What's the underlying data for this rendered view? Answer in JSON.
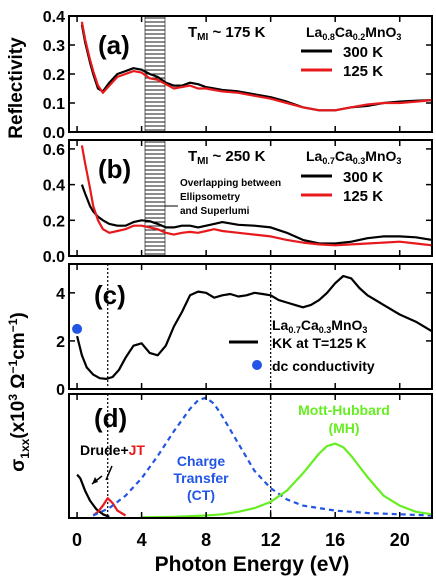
{
  "figure": {
    "xlabel": "Photon Energy (eV)",
    "x_ticks": [
      "0",
      "4",
      "8",
      "12",
      "16",
      "20"
    ],
    "x_range": [
      -0.5,
      22
    ],
    "shared_ylabel_reflectivity": "Reflectivity",
    "shared_ylabel_sigma": "σ1xx(x10³ Ω⁻¹cm⁻¹)"
  },
  "colors": {
    "black": "#000000",
    "red": "#e8191c",
    "blue": "#2255e6",
    "green": "#66ee22"
  },
  "chart_data": [
    {
      "type": "line",
      "panel_label": "(a)",
      "annotation": "T_MI ~ 175 K",
      "material": "La0.8Ca0.2MnO3",
      "ylabel": "Reflectivity",
      "ylim": [
        0,
        0.4
      ],
      "yticks": [
        "0.0",
        "0.1",
        "0.2",
        "0.3",
        "0.4"
      ],
      "hatched_region_x": [
        4.3,
        5.4
      ],
      "series": [
        {
          "name": "300 K",
          "color": "#000000",
          "x": [
            0.3,
            0.5,
            0.8,
            1.0,
            1.3,
            1.6,
            2.0,
            2.5,
            3.0,
            3.5,
            4.0,
            4.5,
            5.0,
            5.5,
            6.0,
            6.5,
            7.0,
            7.5,
            8.0,
            8.5,
            9.0,
            10.0,
            11.0,
            12.0,
            13.0,
            14.0,
            15.0,
            16.0,
            17.0,
            18.0,
            19.0,
            20.0,
            21.0,
            22.0
          ],
          "y": [
            0.37,
            0.31,
            0.24,
            0.2,
            0.15,
            0.14,
            0.17,
            0.2,
            0.21,
            0.22,
            0.215,
            0.2,
            0.19,
            0.17,
            0.16,
            0.16,
            0.17,
            0.165,
            0.155,
            0.15,
            0.145,
            0.14,
            0.13,
            0.12,
            0.105,
            0.085,
            0.075,
            0.075,
            0.085,
            0.09,
            0.1,
            0.105,
            0.108,
            0.11
          ]
        },
        {
          "name": "125 K",
          "color": "#e8191c",
          "x": [
            0.3,
            0.5,
            0.8,
            1.0,
            1.3,
            1.6,
            2.0,
            2.5,
            3.0,
            3.5,
            4.0,
            4.5,
            5.0,
            5.5,
            6.0,
            6.5,
            7.0,
            7.5,
            8.0,
            8.5,
            9.0,
            10.0,
            11.0,
            12.0,
            13.0,
            14.0,
            15.0,
            16.0,
            17.0,
            18.0,
            19.0,
            20.0,
            21.0,
            22.0
          ],
          "y": [
            0.38,
            0.32,
            0.25,
            0.21,
            0.16,
            0.135,
            0.16,
            0.19,
            0.2,
            0.21,
            0.205,
            0.185,
            0.18,
            0.165,
            0.15,
            0.155,
            0.16,
            0.15,
            0.15,
            0.145,
            0.14,
            0.135,
            0.125,
            0.115,
            0.1,
            0.085,
            0.075,
            0.075,
            0.085,
            0.095,
            0.1,
            0.1,
            0.105,
            0.11
          ]
        }
      ]
    },
    {
      "type": "line",
      "panel_label": "(b)",
      "annotation": "T_MI ~ 250 K",
      "material": "La0.7Ca0.3MnO3",
      "ylabel": "Reflectivity",
      "ylim": [
        0,
        0.65
      ],
      "yticks": [
        "0.0",
        "0.2",
        "0.4",
        "0.6"
      ],
      "hatched_region_x": [
        4.3,
        5.4
      ],
      "overlap_note": [
        "Overlapping between",
        "Ellipsometry",
        "and Superlumi"
      ],
      "series": [
        {
          "name": "300 K",
          "color": "#000000",
          "x": [
            0.3,
            0.5,
            0.8,
            1.0,
            1.3,
            1.6,
            2.0,
            2.5,
            3.0,
            3.5,
            4.0,
            4.5,
            5.0,
            5.5,
            6.0,
            6.5,
            7.0,
            7.5,
            8.0,
            8.5,
            9.0,
            10.0,
            11.0,
            12.0,
            13.0,
            14.0,
            15.0,
            16.0,
            17.0,
            18.0,
            19.0,
            20.0,
            21.0,
            22.0
          ],
          "y": [
            0.4,
            0.35,
            0.28,
            0.25,
            0.22,
            0.2,
            0.18,
            0.17,
            0.17,
            0.19,
            0.2,
            0.195,
            0.18,
            0.16,
            0.16,
            0.17,
            0.17,
            0.16,
            0.17,
            0.18,
            0.19,
            0.175,
            0.17,
            0.16,
            0.13,
            0.09,
            0.07,
            0.07,
            0.08,
            0.1,
            0.11,
            0.11,
            0.105,
            0.09
          ]
        },
        {
          "name": "125 K",
          "color": "#e8191c",
          "x": [
            0.3,
            0.5,
            0.8,
            1.0,
            1.3,
            1.6,
            2.0,
            2.5,
            3.0,
            3.5,
            4.0,
            4.5,
            5.0,
            5.5,
            6.0,
            6.5,
            7.0,
            7.5,
            8.0,
            8.5,
            9.0,
            10.0,
            11.0,
            12.0,
            13.0,
            14.0,
            15.0,
            16.0,
            17.0,
            18.0,
            19.0,
            20.0,
            21.0,
            22.0
          ],
          "y": [
            0.62,
            0.52,
            0.38,
            0.28,
            0.2,
            0.15,
            0.13,
            0.14,
            0.15,
            0.17,
            0.17,
            0.16,
            0.15,
            0.13,
            0.12,
            0.13,
            0.135,
            0.13,
            0.14,
            0.15,
            0.14,
            0.13,
            0.12,
            0.11,
            0.09,
            0.075,
            0.065,
            0.06,
            0.065,
            0.07,
            0.075,
            0.08,
            0.07,
            0.06
          ]
        }
      ]
    },
    {
      "type": "line",
      "panel_label": "(c)",
      "material": "La0.7Ca0.3MnO3",
      "ylabel": "σ1xx(x10³ Ω⁻¹cm⁻¹)",
      "ylim": [
        0,
        5.2
      ],
      "yticks": [
        "0",
        "2",
        "4"
      ],
      "vlines_x": [
        1.9,
        12
      ],
      "series": [
        {
          "name": "KK at T=125 K",
          "color": "#000000",
          "x": [
            0.0,
            0.3,
            0.6,
            1.0,
            1.4,
            1.8,
            2.2,
            2.6,
            3.0,
            3.5,
            4.0,
            4.5,
            5.0,
            5.5,
            6.0,
            6.5,
            7.0,
            7.5,
            8.0,
            8.5,
            9.0,
            9.5,
            10.0,
            10.5,
            11.0,
            11.5,
            12.0,
            12.5,
            13.0,
            13.5,
            14.0,
            14.5,
            15.0,
            15.5,
            16.0,
            16.5,
            17.0,
            17.5,
            18.0,
            19.0,
            20.0,
            21.0,
            22.0
          ],
          "y": [
            2.2,
            1.4,
            0.9,
            0.6,
            0.45,
            0.42,
            0.5,
            0.8,
            1.3,
            1.8,
            1.9,
            1.5,
            1.4,
            1.8,
            2.6,
            3.2,
            3.9,
            4.05,
            4.0,
            3.8,
            3.9,
            3.95,
            3.85,
            3.9,
            4.0,
            3.95,
            3.9,
            3.7,
            3.6,
            3.5,
            3.4,
            3.5,
            3.7,
            4.0,
            4.4,
            4.7,
            4.6,
            4.2,
            3.9,
            3.5,
            3.1,
            2.8,
            2.4
          ]
        },
        {
          "name": "dc conductivity",
          "color": "#2255e6",
          "type": "scatter",
          "x": [
            0.0
          ],
          "y": [
            2.5
          ]
        }
      ]
    },
    {
      "type": "line",
      "panel_label": "(d)",
      "ylabel": "σ1xx(x10³ Ω⁻¹cm⁻¹)",
      "ylim": [
        0,
        1.0
      ],
      "vlines_x": [
        1.9,
        12
      ],
      "labels": {
        "drude": "Drude+",
        "jt": "JT",
        "ct_line1": "Charge",
        "ct_line2": "Transfer",
        "ct_line3": "(CT)",
        "mh_line1": "Mott-Hubbard",
        "mh_line2": "(MH)"
      },
      "series": [
        {
          "name": "Drude+JT",
          "color": "#000000",
          "x": [
            0.0,
            0.2,
            0.5,
            0.8,
            1.2,
            1.6,
            2.0
          ],
          "y": [
            0.35,
            0.32,
            0.22,
            0.14,
            0.07,
            0.03,
            0.01
          ]
        },
        {
          "name": "JT",
          "color": "#e8191c",
          "x": [
            1.0,
            1.3,
            1.6,
            1.9,
            2.2,
            2.5,
            3.0
          ],
          "y": [
            0.02,
            0.05,
            0.1,
            0.16,
            0.12,
            0.06,
            0.02
          ]
        },
        {
          "name": "Charge Transfer (CT)",
          "color": "#2255e6",
          "style": "dashed",
          "x": [
            1.0,
            2.0,
            3.0,
            4.0,
            5.0,
            6.0,
            7.0,
            7.5,
            8.0,
            8.5,
            9.0,
            10.0,
            11.0,
            12.0,
            13.0,
            14.0,
            15.0,
            16.0,
            18.0,
            20.0,
            22.0
          ],
          "y": [
            0.02,
            0.08,
            0.18,
            0.32,
            0.5,
            0.7,
            0.88,
            0.95,
            0.97,
            0.92,
            0.82,
            0.6,
            0.38,
            0.24,
            0.15,
            0.1,
            0.08,
            0.06,
            0.04,
            0.03,
            0.02
          ]
        },
        {
          "name": "Mott-Hubbard (MH)",
          "color": "#66ee22",
          "x": [
            4.0,
            6.0,
            8.0,
            9.0,
            10.0,
            11.0,
            12.0,
            13.0,
            14.0,
            15.0,
            15.5,
            16.0,
            16.5,
            17.0,
            18.0,
            19.0,
            20.0,
            21.0,
            22.0
          ],
          "y": [
            0.005,
            0.01,
            0.02,
            0.03,
            0.05,
            0.08,
            0.13,
            0.22,
            0.36,
            0.52,
            0.58,
            0.6,
            0.57,
            0.5,
            0.33,
            0.18,
            0.1,
            0.05,
            0.03
          ]
        }
      ]
    }
  ]
}
